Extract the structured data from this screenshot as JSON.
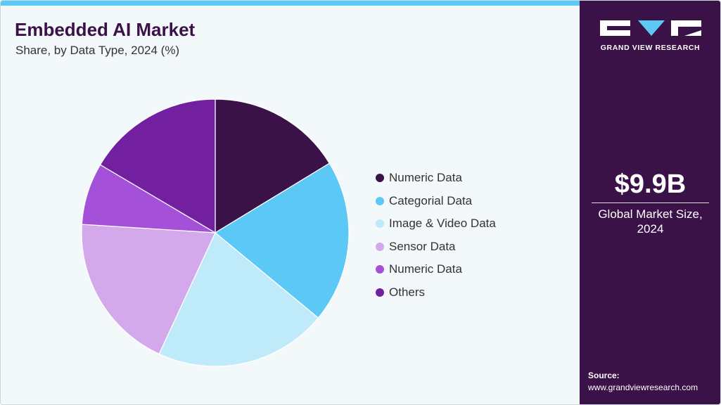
{
  "title": "Embedded AI Market",
  "subtitle": "Share, by Data Type, 2024 (%)",
  "chart_data": {
    "type": "pie",
    "title": "Embedded AI Market",
    "subtitle": "Share, by Data Type, 2024 (%)",
    "categories": [
      "Numeric Data",
      "Categorial Data",
      "Image & Video Data",
      "Sensor Data",
      "Numeric Data",
      "Others"
    ],
    "values": [
      16.3,
      19.7,
      20.9,
      19.1,
      7.5,
      16.5
    ],
    "colors": [
      "#3a1248",
      "#5bc8f5",
      "#bfeaf9",
      "#d4a9ec",
      "#a550d8",
      "#7320a0"
    ],
    "start_angle_deg": 0,
    "direction": "clockwise",
    "legend_position": "right"
  },
  "side_panel": {
    "logo_text": "GRAND VIEW RESEARCH",
    "market_size": "$9.9B",
    "market_label_line1": "Global Market Size,",
    "market_label_line2": "2024",
    "source_label": "Source:",
    "source_url": "www.grandviewresearch.com"
  },
  "colors": {
    "brand_dark": "#3a1248",
    "accent": "#5bc8f5",
    "background": "#f3f8fb"
  }
}
